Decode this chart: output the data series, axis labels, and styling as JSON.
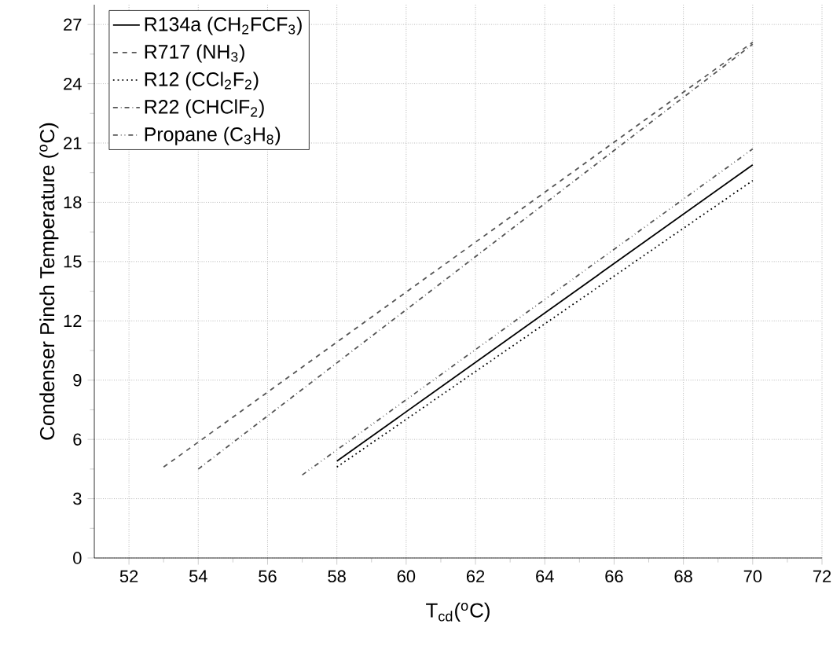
{
  "chart_data": {
    "type": "line",
    "xlabel": "T$_{cd}$($^{o}$C)",
    "ylabel": "Condenser Pinch Temperature ($^{o}$C)",
    "xlim": [
      51,
      72
    ],
    "ylim": [
      0,
      28
    ],
    "xticks": [
      52,
      54,
      56,
      58,
      60,
      62,
      64,
      66,
      68,
      70,
      72
    ],
    "yticks": [
      0,
      3,
      6,
      9,
      12,
      15,
      18,
      21,
      24,
      27
    ],
    "grid": true,
    "legend": "top left",
    "marker": "none",
    "series": [
      {
        "name": "R134a (CH$_{2}$FCF$_{3}$)",
        "color": "#000000",
        "line_style": "solid",
        "x": [
          58,
          70
        ],
        "values": [
          4.9,
          19.9
        ]
      },
      {
        "name": "R717 (NH$_{3}$)",
        "color": "#555555",
        "line_style": "dashed",
        "x": [
          53,
          70
        ],
        "values": [
          4.6,
          26.1
        ]
      },
      {
        "name": "R12 (CCl$_{2}$F$_{2}$)",
        "color": "#000000",
        "line_style": "dotted",
        "x": [
          58,
          70
        ],
        "values": [
          4.6,
          19.1
        ]
      },
      {
        "name": "R22 (CHClF$_{2}$)",
        "color": "#555555",
        "line_style": "dashdot",
        "x": [
          54,
          70
        ],
        "values": [
          4.5,
          26.0
        ]
      },
      {
        "name": "Propane (C$_{3}$H$_{8}$)",
        "color": "#555555",
        "line_style": "dashdotdot",
        "x": [
          57,
          70
        ],
        "values": [
          4.2,
          20.7
        ]
      }
    ]
  }
}
